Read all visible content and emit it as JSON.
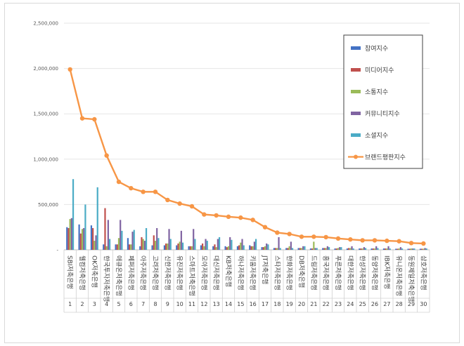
{
  "chart_data": {
    "type": "bar",
    "categories": [
      "SBI저축은행",
      "웰컴저축은행",
      "OK저축은행",
      "한국투자저축은행",
      "애큐온저축은행",
      "페퍼저축은행",
      "아주저축은행",
      "고려저축은행",
      "신한저축은행",
      "유진저축은행",
      "스마트저축은행",
      "모아저축은행",
      "대신저축은행",
      "KB저축은행",
      "하나저축은행",
      "키움저축은행",
      "JT저축은행",
      "스타저축은행",
      "한화저축은행",
      "DB저축은행",
      "드림저축은행",
      "흥국저축은행",
      "푸른저축은행",
      "대한저축은행",
      "한성저축은행",
      "동양저축은행",
      "IBK저축은행",
      "유니온저축은행",
      "동원제일저축은행",
      "삼호저축은행"
    ],
    "numbers": [
      "1",
      "2",
      "3",
      "4",
      "5",
      "6",
      "7",
      "8",
      "9",
      "10",
      "11",
      "12",
      "13",
      "14",
      "15",
      "16",
      "17",
      "18",
      "19",
      "20",
      "21",
      "22",
      "23",
      "24",
      "25",
      "26",
      "27",
      "28",
      "29",
      "30"
    ],
    "yticks": [
      "-",
      "500,000",
      "1,000,000",
      "1,500,000",
      "2,000,000",
      "2,500,000"
    ],
    "ylim": [
      0,
      2500000
    ],
    "series": [
      {
        "name": "참여지수",
        "color": "#4472c4",
        "values": [
          250000,
          280000,
          270000,
          60000,
          60000,
          130000,
          40000,
          50000,
          50000,
          50000,
          40000,
          50000,
          40000,
          40000,
          40000,
          50000,
          30000,
          20000,
          20000,
          20000,
          15000,
          20000,
          15000,
          15000,
          15000,
          15000,
          15000,
          12000,
          12000,
          12000
        ]
      },
      {
        "name": "미디어지수",
        "color": "#c0504d",
        "values": [
          240000,
          180000,
          240000,
          460000,
          60000,
          60000,
          140000,
          160000,
          70000,
          70000,
          40000,
          70000,
          60000,
          30000,
          50000,
          40000,
          30000,
          20000,
          20000,
          20000,
          15000,
          20000,
          15000,
          20000,
          15000,
          15000,
          15000,
          12000,
          12000,
          12000
        ]
      },
      {
        "name": "소통지수",
        "color": "#9bbb59",
        "values": [
          340000,
          230000,
          100000,
          40000,
          130000,
          60000,
          120000,
          100000,
          70000,
          90000,
          40000,
          40000,
          30000,
          40000,
          80000,
          40000,
          40000,
          20000,
          40000,
          20000,
          90000,
          20000,
          20000,
          20000,
          15000,
          15000,
          15000,
          15000,
          15000,
          12000
        ]
      },
      {
        "name": "커뮤니티지수",
        "color": "#8064a2",
        "values": [
          350000,
          240000,
          160000,
          330000,
          330000,
          200000,
          100000,
          240000,
          230000,
          210000,
          230000,
          120000,
          120000,
          140000,
          120000,
          90000,
          70000,
          140000,
          90000,
          40000,
          20000,
          40000,
          30000,
          40000,
          30000,
          40000,
          40000,
          30000,
          15000,
          20000
        ]
      },
      {
        "name": "소셜지수",
        "color": "#4bacc6",
        "values": [
          780000,
          500000,
          690000,
          120000,
          210000,
          220000,
          240000,
          130000,
          120000,
          80000,
          120000,
          100000,
          140000,
          110000,
          50000,
          120000,
          60000,
          20000,
          20000,
          40000,
          20000,
          30000,
          30000,
          15000,
          20000,
          20000,
          15000,
          15000,
          15000,
          15000
        ]
      },
      {
        "name": "브랜드평판지수",
        "color": "#f79646",
        "values": [
          1990000,
          1450000,
          1440000,
          1040000,
          750000,
          680000,
          640000,
          640000,
          550000,
          510000,
          480000,
          390000,
          380000,
          365000,
          355000,
          330000,
          250000,
          190000,
          175000,
          145000,
          145000,
          140000,
          125000,
          115000,
          105000,
          105000,
          100000,
          95000,
          75000,
          70000
        ]
      }
    ]
  }
}
